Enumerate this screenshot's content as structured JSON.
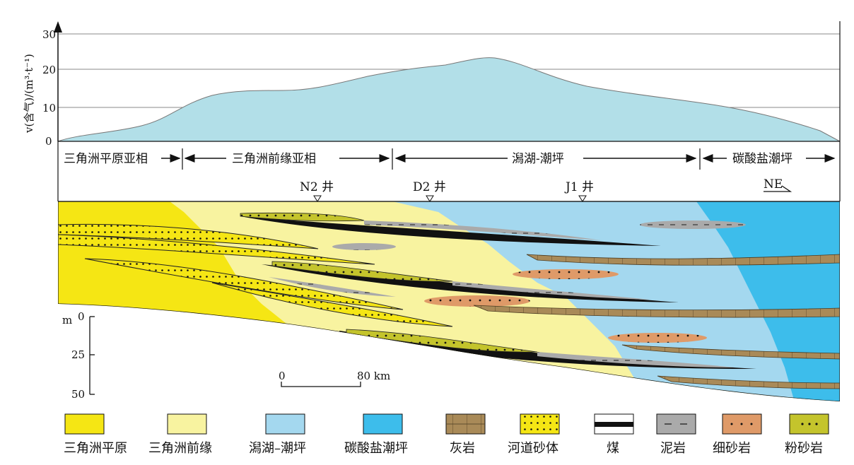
{
  "chart": {
    "y_axis_label": "v(含气)/(m³·t⁻¹)",
    "y_ticks": [
      "30",
      "20",
      "10",
      "0"
    ],
    "ylim": [
      0,
      30
    ],
    "gas_profile_fill": "#b2dfe8"
  },
  "facies_bands": [
    {
      "label": "三角洲平原亚相"
    },
    {
      "label": "三角洲前缘亚相"
    },
    {
      "label": "潟湖-潮坪"
    },
    {
      "label": "碳酸盐潮坪"
    }
  ],
  "wells": [
    {
      "label": "N2 井"
    },
    {
      "label": "D2 井"
    },
    {
      "label": "J1 井"
    }
  ],
  "direction": "NE",
  "vertical_scale": {
    "unit": "m",
    "ticks": [
      "0",
      "25",
      "50"
    ]
  },
  "horizontal_scale": {
    "start": "0",
    "end": "80 km"
  },
  "legend": [
    {
      "label": "三角洲平原",
      "color": "#f5e614"
    },
    {
      "label": "三角洲前缘",
      "color": "#f8f3a0"
    },
    {
      "label": "潟湖–潮坪",
      "color": "#a4d8ef"
    },
    {
      "label": "碳酸盐潮坪",
      "color": "#3dbdeb"
    },
    {
      "label": "灰岩",
      "color": "#a98a58"
    },
    {
      "label": "河道砂体",
      "color": "#f5e614"
    },
    {
      "label": "煤",
      "color": "#111111"
    },
    {
      "label": "泥岩",
      "color": "#aaaaaa"
    },
    {
      "label": "细砂岩",
      "color": "#df9a68"
    },
    {
      "label": "粉砂岩",
      "color": "#c4c42c"
    }
  ]
}
